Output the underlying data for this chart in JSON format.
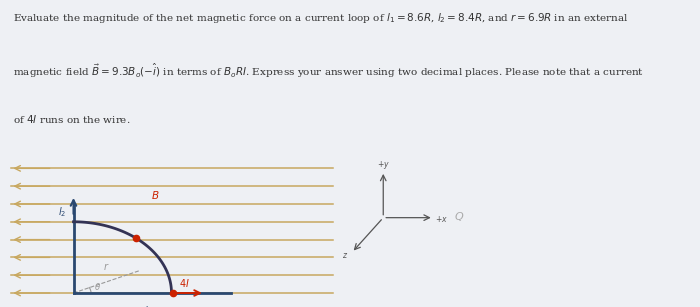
{
  "bg_color": "#eef0f4",
  "text_color": "#333333",
  "title_lines": [
    "Evaluate the magnitude of the net magnetic force on a current loop of $l_1 = 8.6R$, $l_2 = 8.4R$, and $r = 6.9R$ in an external",
    "magnetic field $\\vec{B} = 9.3B_o(-\\hat{i})$ in terms of $B_oRI$. Express your answer using two decimal places. Please note that a current",
    "of $4I$ runs on the wire."
  ],
  "line_color": "#c8a860",
  "wire_color": "#2a4870",
  "arc_color": "#333355",
  "current_color": "#cc2200",
  "dashed_color": "#999999",
  "B_label_color": "#cc3300",
  "coord_color": "#555555"
}
